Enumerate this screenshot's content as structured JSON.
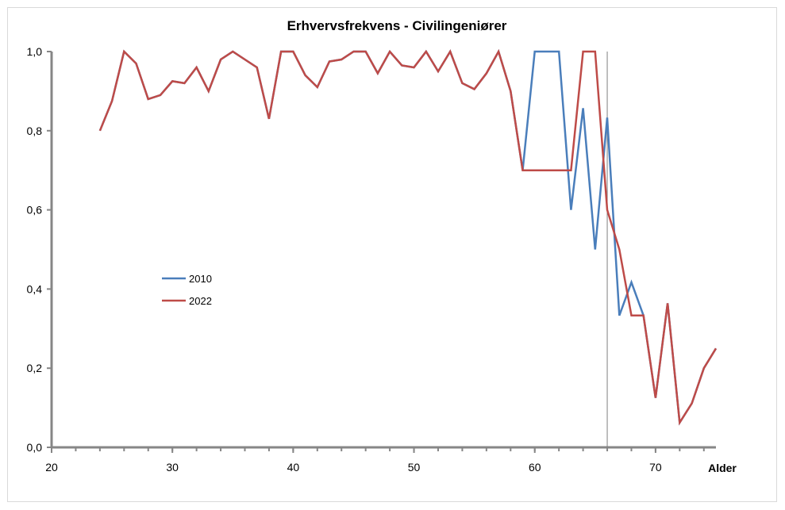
{
  "chart_data": {
    "type": "line",
    "title": "Erhvervsfrekvens - Civilingeniører",
    "xlabel": "Alder",
    "ylabel": "",
    "xlim": [
      20,
      75
    ],
    "ylim": [
      0,
      1
    ],
    "xticks": [
      20,
      30,
      40,
      50,
      60,
      70
    ],
    "xtick_labels": [
      "20",
      "30",
      "40",
      "50",
      "60",
      "70"
    ],
    "yticks": [
      0,
      0.2,
      0.4,
      0.6,
      0.8,
      1.0
    ],
    "ytick_labels": [
      "0,0",
      "0,2",
      "0,4",
      "0,6",
      "0,8",
      "1,0"
    ],
    "grid": false,
    "legend_position": "center-left",
    "reference_line_x": 66,
    "x": [
      24,
      25,
      26,
      27,
      28,
      29,
      30,
      31,
      32,
      33,
      34,
      35,
      36,
      37,
      38,
      39,
      40,
      41,
      42,
      43,
      44,
      45,
      46,
      47,
      48,
      49,
      50,
      51,
      52,
      53,
      54,
      55,
      56,
      57,
      58,
      59,
      60,
      61,
      62,
      63,
      64,
      65,
      66,
      67,
      68,
      69,
      70,
      71,
      72,
      73,
      74,
      75
    ],
    "series": [
      {
        "name": "2010",
        "color": "#4a7ebb",
        "values": [
          0.8,
          0.875,
          1.0,
          0.97,
          0.88,
          0.89,
          0.925,
          0.92,
          0.96,
          0.9,
          0.98,
          1.0,
          0.98,
          0.96,
          0.83,
          1.0,
          1.0,
          0.94,
          0.91,
          0.975,
          0.98,
          1.0,
          1.0,
          0.945,
          1.0,
          0.965,
          0.96,
          1.0,
          0.95,
          1.0,
          0.92,
          0.905,
          0.945,
          1.0,
          0.9,
          0.7,
          1.0,
          1.0,
          1.0,
          0.6,
          0.857,
          0.5,
          0.833,
          0.333,
          0.417,
          0.333,
          0.125,
          0.364,
          0.0625,
          0.111,
          0.2,
          0.25
        ]
      },
      {
        "name": "2022",
        "color": "#be4b48",
        "values": [
          0.8,
          0.875,
          1.0,
          0.97,
          0.88,
          0.89,
          0.925,
          0.92,
          0.96,
          0.9,
          0.98,
          1.0,
          0.98,
          0.96,
          0.83,
          1.0,
          1.0,
          0.94,
          0.91,
          0.975,
          0.98,
          1.0,
          1.0,
          0.945,
          1.0,
          0.965,
          0.96,
          1.0,
          0.95,
          1.0,
          0.92,
          0.905,
          0.945,
          1.0,
          0.9,
          0.7,
          0.7,
          0.7,
          0.7,
          0.7,
          1.0,
          1.0,
          0.6,
          0.5,
          0.333,
          0.333,
          0.125,
          0.364,
          0.0625,
          0.111,
          0.2,
          0.25
        ]
      }
    ]
  }
}
